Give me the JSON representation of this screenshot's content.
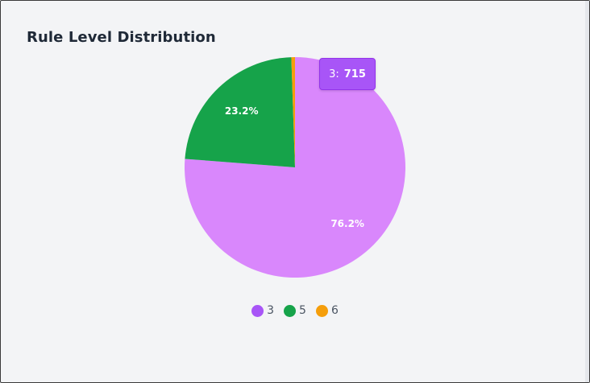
{
  "chart_data": {
    "type": "pie",
    "title": "Rule Level Distribution",
    "categories": [
      "3",
      "5",
      "6"
    ],
    "values": [
      715,
      218,
      5
    ],
    "percent_labels": [
      "76.2%",
      "23.2%",
      ""
    ],
    "colors": [
      "#d987fc",
      "#16a34a",
      "#f59e0b"
    ],
    "legend_colors": [
      "#a855f7",
      "#16a34a",
      "#f59e0b"
    ],
    "legend_position": "bottom",
    "tooltip": {
      "category": "3:",
      "value": "715"
    }
  }
}
